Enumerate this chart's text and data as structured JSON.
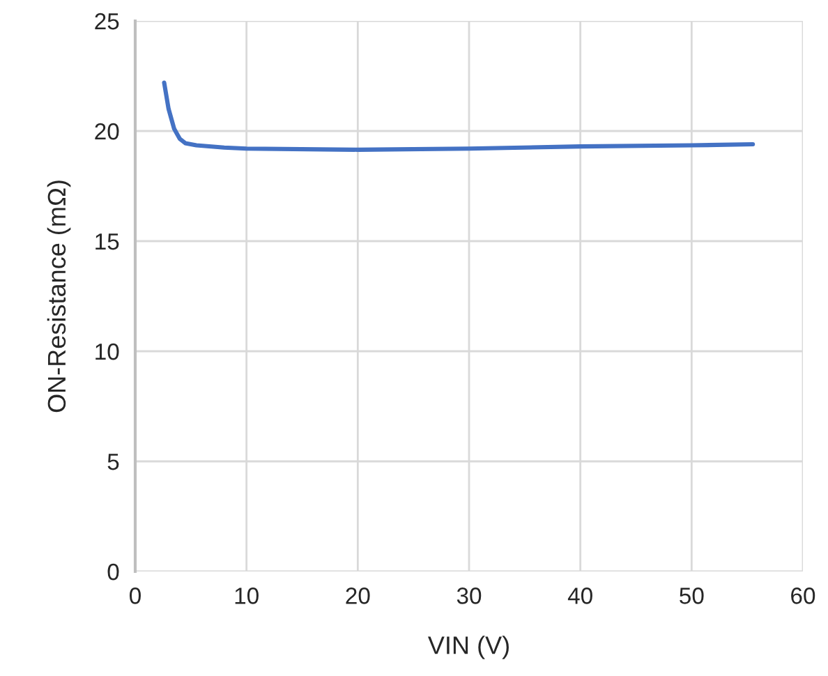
{
  "chart_data": {
    "type": "line",
    "xlabel": "VIN (V)",
    "ylabel": "ON-Resistance (mΩ)",
    "x": [
      2.6,
      3.0,
      3.5,
      4.0,
      4.5,
      5.5,
      8,
      10,
      20,
      30,
      40,
      50,
      55.5
    ],
    "series": [
      {
        "color": "#4472c4",
        "values": [
          22.2,
          21.0,
          20.1,
          19.65,
          19.45,
          19.35,
          19.25,
          19.2,
          19.15,
          19.2,
          19.3,
          19.35,
          19.4
        ]
      }
    ],
    "xlim": [
      0,
      60
    ],
    "xticks": [
      0,
      10,
      20,
      30,
      40,
      50,
      60
    ],
    "ylim": [
      0,
      25
    ],
    "yticks": [
      0,
      5,
      10,
      15,
      20,
      25
    ],
    "grid": true,
    "marker": "none",
    "line_style": "solid"
  }
}
